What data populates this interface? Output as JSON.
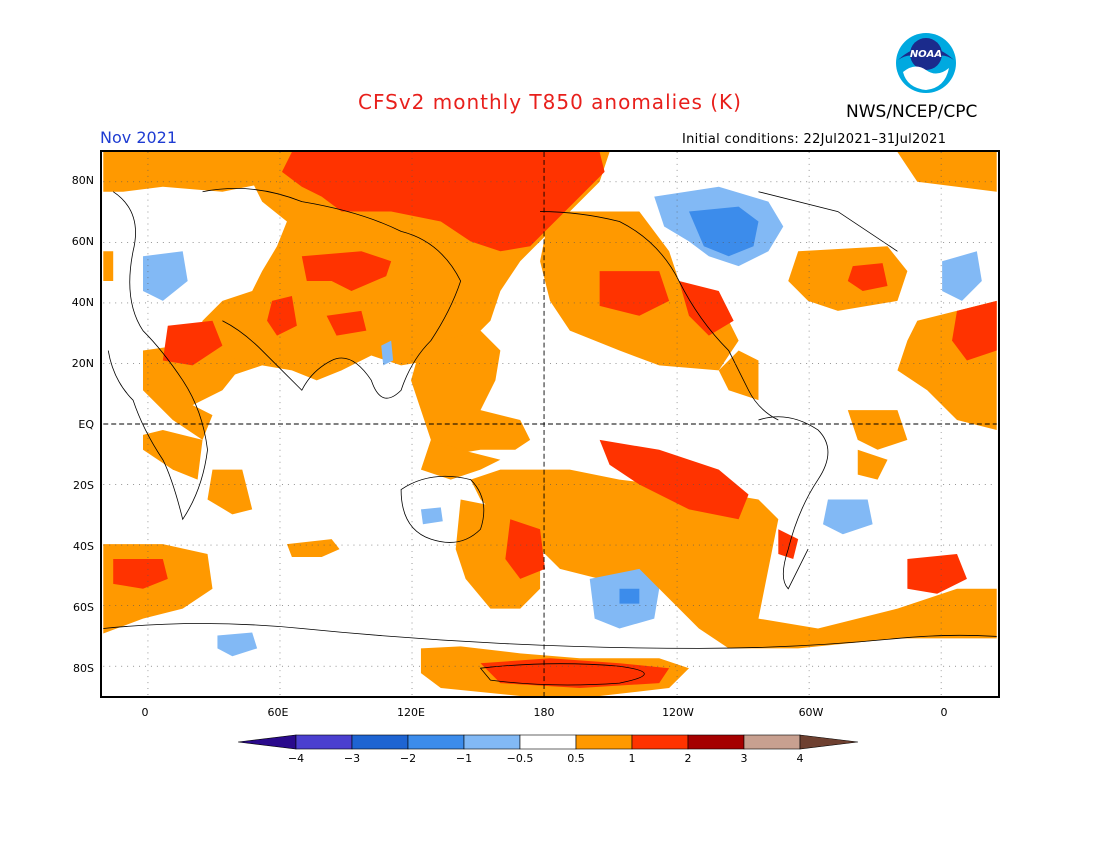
{
  "header": {
    "title": "CFSv2 monthly T850 anomalies (K)",
    "org": "NWS/NCEP/CPC",
    "month": "Nov 2021",
    "initial_conditions": "Initial conditions: 22Jul2021–31Jul2021",
    "logo_text": "NOAA"
  },
  "axes": {
    "lat_labels": [
      "80N",
      "60N",
      "40N",
      "20N",
      "EQ",
      "20S",
      "40S",
      "60S",
      "80S"
    ],
    "lon_labels": [
      "0",
      "60E",
      "120E",
      "180",
      "120W",
      "60W",
      "0"
    ]
  },
  "colorbar": {
    "labels": [
      "−4",
      "−3",
      "−2",
      "−1",
      "−0.5",
      "0.5",
      "1",
      "2",
      "3",
      "4"
    ],
    "colors": [
      "#2a0a8c",
      "#4b3fcf",
      "#1e64d2",
      "#3c8ceb",
      "#82b9f5",
      "#ffffff",
      "#ff9900",
      "#ff3300",
      "#a50000",
      "#c8a090",
      "#6e4030"
    ]
  },
  "palette": {
    "warm1": "#ff9900",
    "warm2": "#ff3300",
    "cool1": "#82b9f5",
    "cool2": "#3c8ceb",
    "title_color": "#e8201c",
    "month_color": "#1e3cd2"
  }
}
